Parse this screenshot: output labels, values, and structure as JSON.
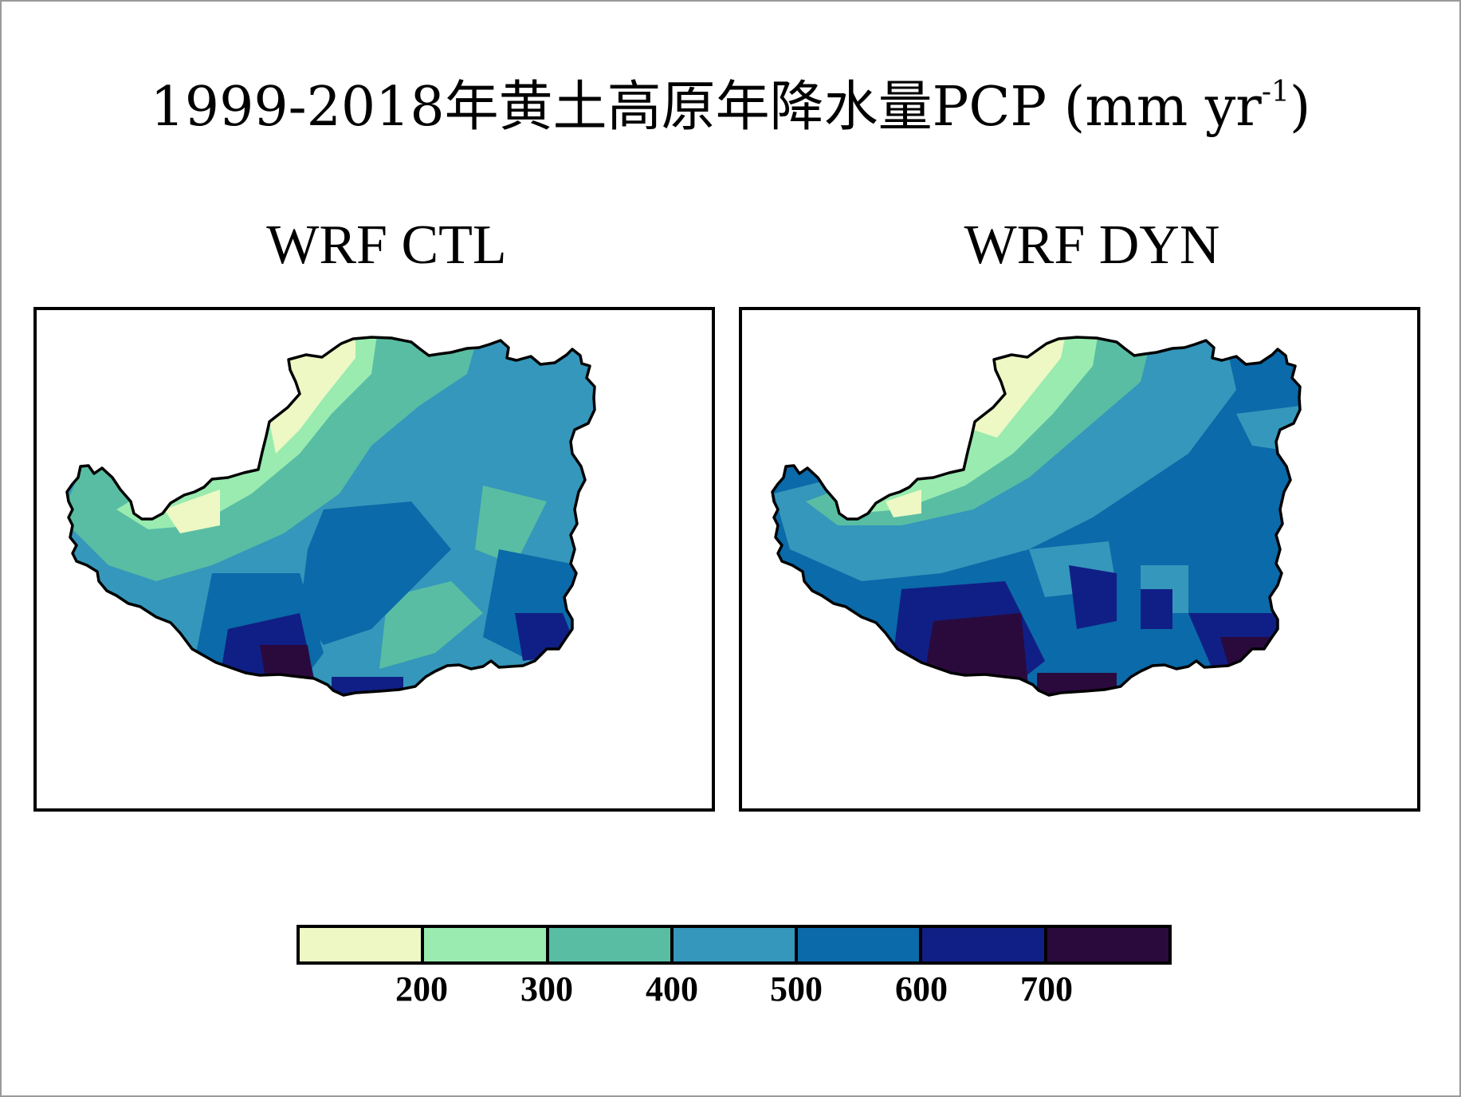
{
  "title": {
    "main": "1999-2018年黄土高原年降水量PCP (mm yr",
    "sup": "-1",
    "close": ")"
  },
  "panels": [
    {
      "id": "ctl",
      "title": "WRF CTL"
    },
    {
      "id": "dyn",
      "title": "WRF DYN"
    }
  ],
  "colorbar": {
    "colors": [
      "#edf8c4",
      "#99ebb0",
      "#59bda3",
      "#3597bb",
      "#0b6aa9",
      "#101f85",
      "#2a0a3d"
    ],
    "ticks": [
      "200",
      "300",
      "400",
      "500",
      "600",
      "700"
    ]
  }
}
